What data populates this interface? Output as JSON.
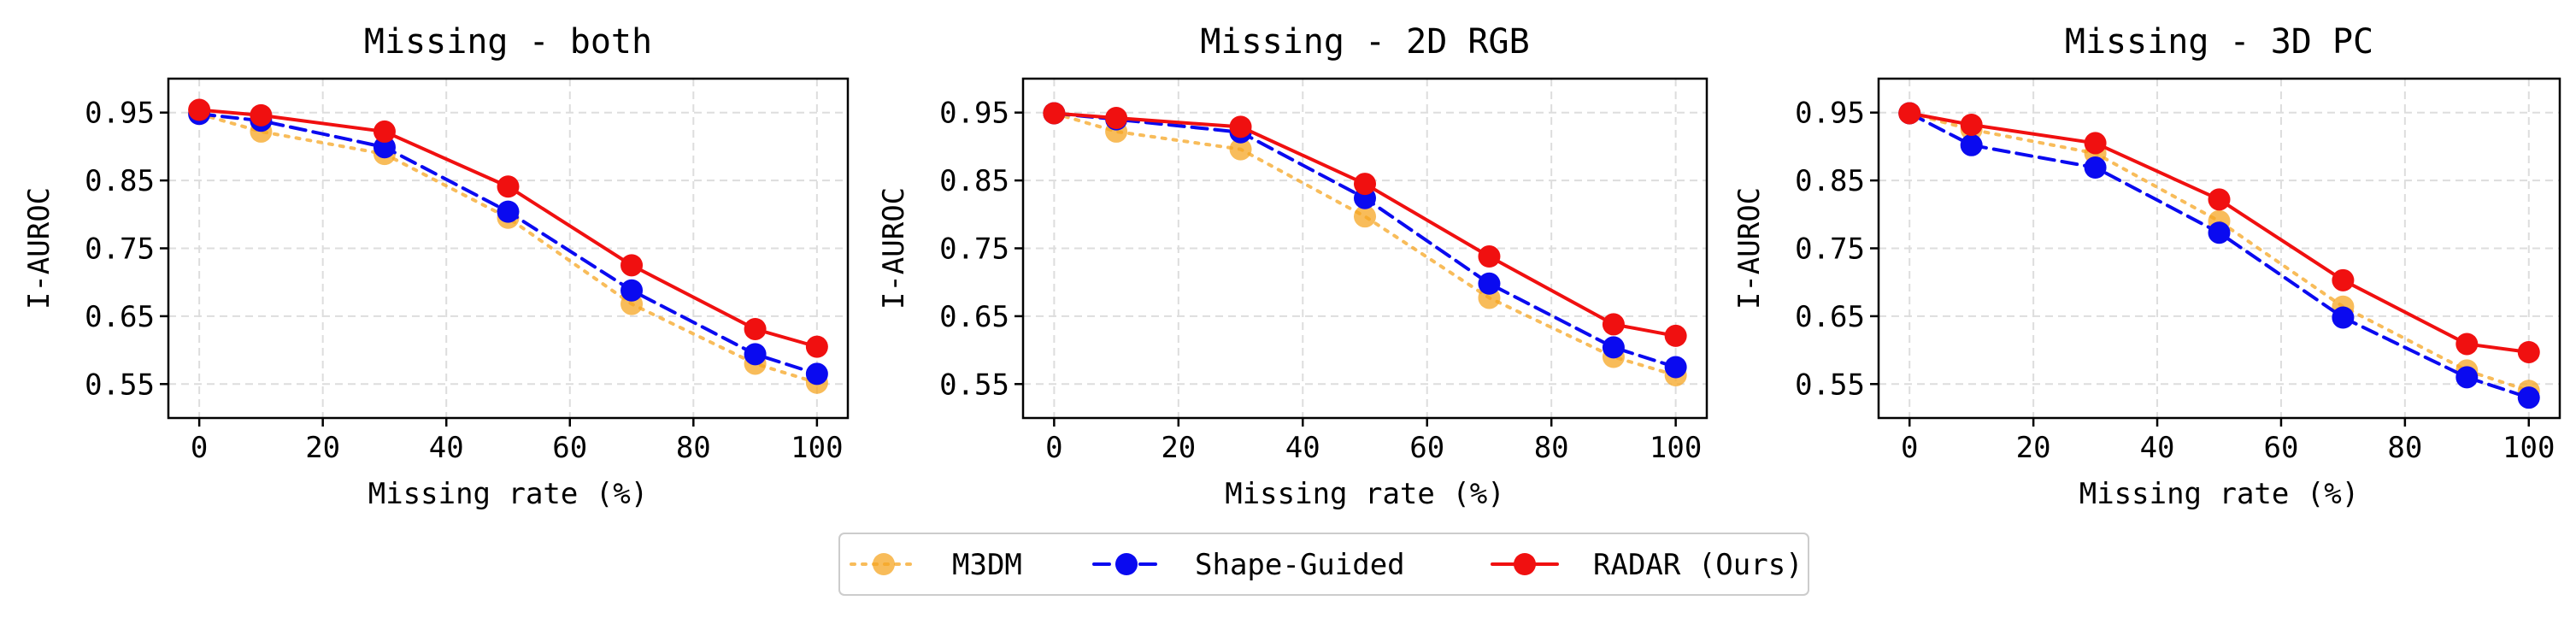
{
  "colors": {
    "m3dm": "#f5a623",
    "shape_guided": "#0a0af0",
    "radar": "#f01010",
    "grid": "#dddddd",
    "axes": "#000000"
  },
  "legend": {
    "items": [
      {
        "name": "M3DM",
        "color": "#f5a623",
        "linestyle": "dotted",
        "alpha": 0.75
      },
      {
        "name": "Shape-Guided",
        "color": "#0a0af0",
        "linestyle": "dashed",
        "alpha": 1.0
      },
      {
        "name": "RADAR (Ours)",
        "color": "#f01010",
        "linestyle": "solid",
        "alpha": 1.0
      }
    ],
    "placement": "bottom-center"
  },
  "chart_data": [
    {
      "type": "line",
      "title": "Missing - both",
      "xlabel": "Missing rate (%)",
      "ylabel": "I-AUROC",
      "xlim": [
        -5,
        105
      ],
      "ylim": [
        0.5,
        1.0
      ],
      "xticks": [
        0,
        20,
        40,
        60,
        80,
        100
      ],
      "yticks": [
        0.55,
        0.65,
        0.75,
        0.85,
        0.95
      ],
      "ytick_labels": [
        "0.55",
        "0.65",
        "0.75",
        "0.85",
        "0.95"
      ],
      "xtick_labels": [
        "0",
        "20",
        "40",
        "60",
        "80",
        "100"
      ],
      "grid": true,
      "x": [
        0,
        10,
        30,
        50,
        70,
        90,
        100
      ],
      "series": [
        {
          "name": "M3DM",
          "values": [
            0.948,
            0.922,
            0.889,
            0.795,
            0.668,
            0.58,
            0.552
          ]
        },
        {
          "name": "Shape-Guided",
          "values": [
            0.948,
            0.938,
            0.899,
            0.804,
            0.688,
            0.594,
            0.565
          ]
        },
        {
          "name": "RADAR (Ours)",
          "values": [
            0.954,
            0.946,
            0.922,
            0.841,
            0.725,
            0.631,
            0.605
          ]
        }
      ]
    },
    {
      "type": "line",
      "title": "Missing - 2D RGB",
      "xlabel": "Missing rate (%)",
      "ylabel": "I-AUROC",
      "xlim": [
        -5,
        105
      ],
      "ylim": [
        0.5,
        1.0
      ],
      "xticks": [
        0,
        20,
        40,
        60,
        80,
        100
      ],
      "yticks": [
        0.55,
        0.65,
        0.75,
        0.85,
        0.95
      ],
      "ytick_labels": [
        "0.55",
        "0.65",
        "0.75",
        "0.85",
        "0.95"
      ],
      "xtick_labels": [
        "0",
        "20",
        "40",
        "60",
        "80",
        "100"
      ],
      "grid": true,
      "x": [
        0,
        10,
        30,
        50,
        70,
        90,
        100
      ],
      "series": [
        {
          "name": "M3DM",
          "values": [
            0.949,
            0.922,
            0.896,
            0.797,
            0.677,
            0.59,
            0.563
          ]
        },
        {
          "name": "Shape-Guided",
          "values": [
            0.949,
            0.94,
            0.921,
            0.824,
            0.698,
            0.604,
            0.575
          ]
        },
        {
          "name": "RADAR (Ours)",
          "values": [
            0.949,
            0.942,
            0.929,
            0.845,
            0.738,
            0.638,
            0.621
          ]
        }
      ]
    },
    {
      "type": "line",
      "title": "Missing - 3D PC",
      "xlabel": "Missing rate (%)",
      "ylabel": "I-AUROC",
      "xlim": [
        -5,
        105
      ],
      "ylim": [
        0.5,
        1.0
      ],
      "xticks": [
        0,
        20,
        40,
        60,
        80,
        100
      ],
      "yticks": [
        0.55,
        0.65,
        0.75,
        0.85,
        0.95
      ],
      "ytick_labels": [
        "0.55",
        "0.65",
        "0.75",
        "0.85",
        "0.95"
      ],
      "xtick_labels": [
        "0",
        "20",
        "40",
        "60",
        "80",
        "100"
      ],
      "grid": true,
      "x": [
        0,
        10,
        30,
        50,
        70,
        90,
        100
      ],
      "series": [
        {
          "name": "M3DM",
          "values": [
            0.949,
            0.925,
            0.89,
            0.79,
            0.664,
            0.57,
            0.54
          ]
        },
        {
          "name": "Shape-Guided",
          "values": [
            0.949,
            0.902,
            0.869,
            0.773,
            0.648,
            0.56,
            0.53
          ]
        },
        {
          "name": "RADAR (Ours)",
          "values": [
            0.949,
            0.932,
            0.905,
            0.822,
            0.703,
            0.609,
            0.597
          ]
        }
      ]
    }
  ]
}
